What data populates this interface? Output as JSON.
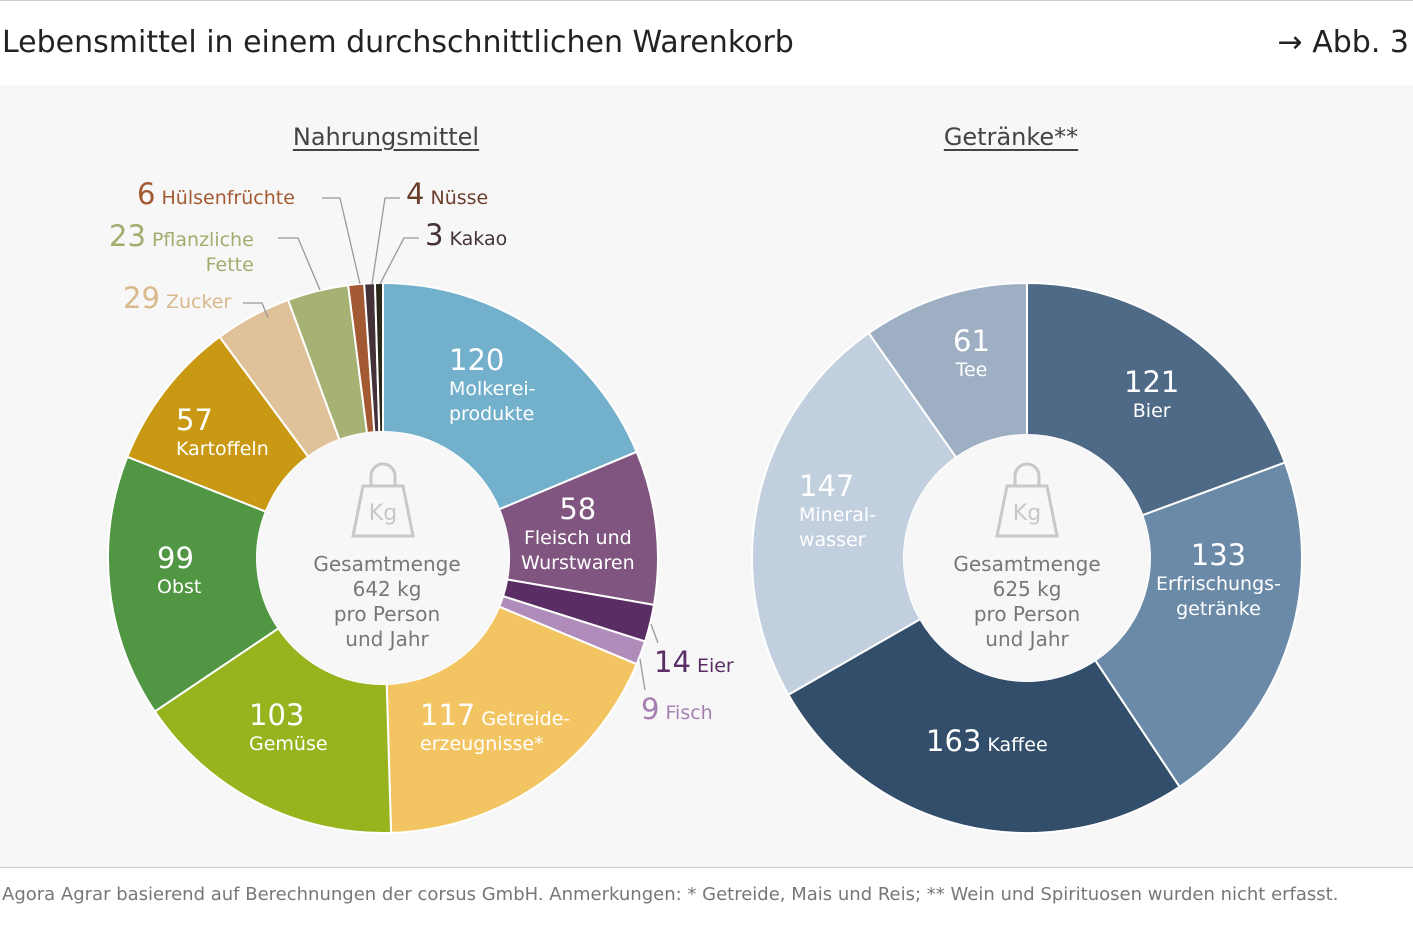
{
  "header": {
    "title": "Lebensmittel in einem durchschnittlichen Warenkorb",
    "ref": "→ Abb. 3"
  },
  "chart_data": [
    {
      "type": "pie",
      "title": "Nahrungsmittel",
      "unit": "kg",
      "center": {
        "line1": "Gesamtmenge",
        "line2": "642 kg",
        "line3": "pro Person",
        "line4": "und Jahr"
      },
      "categories": [
        "Molkerei-produkte",
        "Fleisch und Wurstwaren",
        "Eier",
        "Fisch",
        "Getreide-erzeugnisse*",
        "Gemüse",
        "Obst",
        "Kartoffeln",
        "Zucker",
        "Pflanzliche Fette",
        "Hülsenfrüchte",
        "Nüsse",
        "Kakao"
      ],
      "values": [
        120,
        58,
        14,
        9,
        117,
        103,
        99,
        57,
        29,
        23,
        6,
        4,
        3
      ],
      "colors": [
        "#72b0cb",
        "#80557f",
        "#5a2d65",
        "#b08cba",
        "#f3c562",
        "#97b41f",
        "#519643",
        "#c99913",
        "#e0c29a",
        "#a6b174",
        "#a35a32",
        "#44313a",
        "#2a2818"
      ]
    },
    {
      "type": "pie",
      "title": "Getränke**",
      "unit": "kg",
      "center": {
        "line1": "Gesamtmenge",
        "line2": "625 kg",
        "line3": "pro Person",
        "line4": "und Jahr"
      },
      "categories": [
        "Bier",
        "Erfrischungs-getränke",
        "Kaffee",
        "Mineral-wasser",
        "Tee"
      ],
      "values": [
        121,
        133,
        163,
        147,
        61
      ],
      "colors": [
        "#4e6a86",
        "#6b8aa8",
        "#334e6b",
        "#c2cfdf",
        "#9eafc4"
      ]
    }
  ],
  "labels": {
    "l1a": "Molkerei-",
    "l1b": "produkte",
    "l2a": "Fleisch und",
    "l2b": "Wurstwaren",
    "l5a": "Getreide-",
    "l5b": "erzeugnisse*",
    "l10a": "Pflanzliche",
    "l10b": "Fette",
    "r2a": "Erfrischungs-",
    "r2b": "getränke",
    "r4a": "Mineral-",
    "r4b": "wasser"
  },
  "footer": "Agora Agrar basierend auf Berechnungen der corsus GmbH. Anmerkungen: * Getreide, Mais und Reis; ** Wein und Spirituosen wurden nicht erfasst."
}
